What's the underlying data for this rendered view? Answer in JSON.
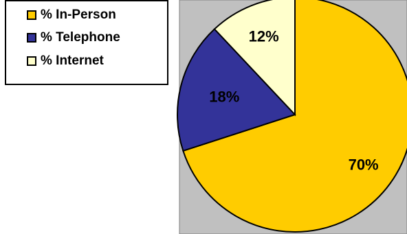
{
  "chart_data": {
    "type": "pie",
    "categories": [
      "% In-Person",
      "% Telephone",
      "% Internet"
    ],
    "values": [
      70,
      18,
      12
    ],
    "data_labels": [
      "70%",
      "18%",
      "12%"
    ],
    "colors": [
      "#FFCC00",
      "#333399",
      "#FFFFCC"
    ],
    "plot_background": "#C0C0C0",
    "legend_placement": "top-left",
    "title": "",
    "xlabel": "",
    "ylabel": ""
  }
}
